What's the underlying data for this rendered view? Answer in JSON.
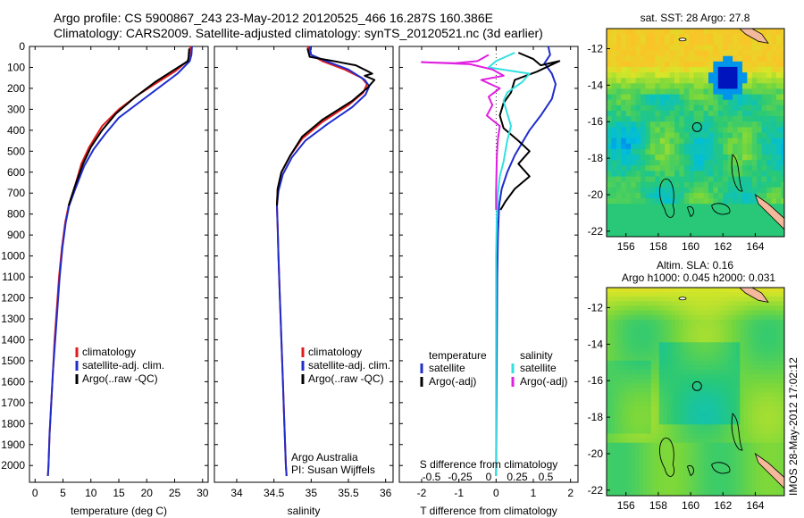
{
  "header": {
    "line1": "Argo profile: CS 5900867_243 23-May-2012 20120525_466 16.287S 160.386E",
    "line2": "Climatology: CARS2009. Satellite-adjusted climatology: synTS_20120521.nc (3d earlier)"
  },
  "footer_stamp": "IMOS 28-May-2012 17:02:12",
  "colors": {
    "climatology": "#e31a1c",
    "satellite": "#1f2dcc",
    "argo": "#000000",
    "s_satellite": "#33e0e0",
    "s_argo": "#e020e0",
    "land": "#f4b89a"
  },
  "chart_data": [
    {
      "type": "line",
      "panel": "temperature",
      "xlabel": "temperature (deg C)",
      "ylabel": "",
      "xlim": [
        -1,
        31
      ],
      "ylim": [
        2080,
        0
      ],
      "xticks": [
        0,
        5,
        10,
        15,
        20,
        25,
        30
      ],
      "yticks": [
        0,
        100,
        200,
        300,
        400,
        500,
        600,
        700,
        800,
        900,
        1000,
        1100,
        1200,
        1300,
        1400,
        1500,
        1600,
        1700,
        1800,
        1900,
        2000
      ],
      "legend": [
        "climatology",
        "satellite-adj. clim.",
        "Argo(..raw -QC)"
      ],
      "series": [
        {
          "name": "climatology",
          "color": "#e31a1c",
          "points": [
            [
              27.8,
              0
            ],
            [
              27.7,
              40
            ],
            [
              27.3,
              70
            ],
            [
              25,
              120
            ],
            [
              22,
              170
            ],
            [
              18.5,
              230
            ],
            [
              15,
              300
            ],
            [
              12,
              380
            ],
            [
              9.7,
              480
            ],
            [
              8.3,
              560
            ],
            [
              7,
              680
            ],
            [
              6,
              760
            ],
            [
              5.4,
              840
            ],
            [
              4.8,
              960
            ],
            [
              4.3,
              1100
            ],
            [
              3.9,
              1250
            ],
            [
              3.5,
              1400
            ],
            [
              3.2,
              1550
            ],
            [
              2.9,
              1700
            ],
            [
              2.6,
              1850
            ],
            [
              2.4,
              2000
            ],
            [
              2.3,
              2050
            ]
          ]
        },
        {
          "name": "satellite-adj. clim.",
          "color": "#1f2dcc",
          "points": [
            [
              28.1,
              0
            ],
            [
              28,
              40
            ],
            [
              27.7,
              70
            ],
            [
              25.5,
              130
            ],
            [
              22.5,
              190
            ],
            [
              19,
              260
            ],
            [
              15,
              340
            ],
            [
              12.5,
              420
            ],
            [
              10.5,
              490
            ],
            [
              8.8,
              570
            ],
            [
              7.2,
              680
            ],
            [
              6.1,
              760
            ],
            [
              5.5,
              840
            ],
            [
              4.9,
              960
            ],
            [
              4.4,
              1100
            ],
            [
              4,
              1250
            ],
            [
              3.6,
              1400
            ],
            [
              3.2,
              1550
            ],
            [
              2.9,
              1700
            ],
            [
              2.6,
              1850
            ],
            [
              2.4,
              2000
            ],
            [
              2.3,
              2050
            ]
          ]
        },
        {
          "name": "Argo(..raw -QC)",
          "color": "#000000",
          "points": [
            [
              27.6,
              10
            ],
            [
              27.5,
              50
            ],
            [
              27.4,
              70
            ],
            [
              25,
              110
            ],
            [
              21.5,
              170
            ],
            [
              18,
              240
            ],
            [
              14.5,
              320
            ],
            [
              12,
              400
            ],
            [
              10,
              480
            ],
            [
              8.6,
              560
            ],
            [
              7.1,
              670
            ],
            [
              6,
              760
            ]
          ]
        }
      ]
    },
    {
      "type": "line",
      "panel": "salinity",
      "xlabel": "salinity",
      "ylabel": "",
      "xlim": [
        33.7,
        36.1
      ],
      "ylim": [
        2080,
        0
      ],
      "xticks": [
        34,
        34.5,
        35,
        35.5,
        36
      ],
      "legend": [
        "climatology",
        "satellite-adj. clim.",
        "Argo(..raw -QC)"
      ],
      "annotations": [
        "Argo Australia",
        "PI: Susan Wijffels"
      ],
      "series": [
        {
          "name": "climatology",
          "color": "#e31a1c",
          "points": [
            [
              34.95,
              0
            ],
            [
              35.0,
              40
            ],
            [
              35.15,
              70
            ],
            [
              35.45,
              110
            ],
            [
              35.68,
              150
            ],
            [
              35.75,
              180
            ],
            [
              35.7,
              220
            ],
            [
              35.5,
              280
            ],
            [
              35.15,
              360
            ],
            [
              34.88,
              440
            ],
            [
              34.72,
              520
            ],
            [
              34.6,
              600
            ],
            [
              34.55,
              680
            ],
            [
              34.54,
              760
            ],
            [
              34.55,
              860
            ],
            [
              34.56,
              1000
            ],
            [
              34.58,
              1200
            ],
            [
              34.6,
              1400
            ],
            [
              34.62,
              1600
            ],
            [
              34.64,
              1800
            ],
            [
              34.66,
              2000
            ],
            [
              34.67,
              2050
            ]
          ]
        },
        {
          "name": "satellite-adj. clim.",
          "color": "#1f2dcc",
          "points": [
            [
              34.98,
              0
            ],
            [
              35.0,
              40
            ],
            [
              35.2,
              70
            ],
            [
              35.5,
              110
            ],
            [
              35.72,
              160
            ],
            [
              35.78,
              190
            ],
            [
              35.73,
              230
            ],
            [
              35.55,
              290
            ],
            [
              35.22,
              370
            ],
            [
              34.92,
              450
            ],
            [
              34.74,
              530
            ],
            [
              34.62,
              610
            ],
            [
              34.56,
              690
            ],
            [
              34.54,
              760
            ],
            [
              34.55,
              860
            ],
            [
              34.56,
              1000
            ],
            [
              34.58,
              1200
            ],
            [
              34.6,
              1400
            ],
            [
              34.62,
              1600
            ],
            [
              34.64,
              1800
            ],
            [
              34.66,
              2000
            ],
            [
              34.67,
              2050
            ]
          ]
        },
        {
          "name": "Argo(..raw -QC)",
          "color": "#000000",
          "points": [
            [
              34.95,
              10
            ],
            [
              34.98,
              50
            ],
            [
              35.3,
              70
            ],
            [
              35.6,
              90
            ],
            [
              35.77,
              120
            ],
            [
              35.82,
              130
            ],
            [
              35.72,
              140
            ],
            [
              35.85,
              160
            ],
            [
              35.75,
              200
            ],
            [
              35.55,
              260
            ],
            [
              35.15,
              350
            ],
            [
              34.88,
              430
            ],
            [
              34.72,
              520
            ],
            [
              34.6,
              600
            ],
            [
              34.55,
              680
            ],
            [
              34.54,
              760
            ]
          ]
        }
      ]
    },
    {
      "type": "line",
      "panel": "difference",
      "xlabel": "T difference from climatology",
      "top_axis_label": "S difference from climatology",
      "xlim": [
        -2.6,
        2.2
      ],
      "ylim": [
        2080,
        0
      ],
      "xticks": [
        -2,
        -1,
        0,
        1,
        2
      ],
      "s_ticks": [
        "-0.5",
        "-0.25",
        "0",
        "0.25",
        "0.5"
      ],
      "legend_headers": [
        "temperature",
        "salinity"
      ],
      "legend": [
        "satellite",
        "Argo(-adj)",
        "satellite",
        "Argo(-adj)"
      ],
      "series": [
        {
          "name": "temperature satellite",
          "color": "#1f2dcc",
          "points": [
            [
              1.4,
              0
            ],
            [
              1.45,
              40
            ],
            [
              1.3,
              80
            ],
            [
              1.5,
              130
            ],
            [
              1.6,
              180
            ],
            [
              1.5,
              250
            ],
            [
              1.2,
              330
            ],
            [
              0.9,
              400
            ],
            [
              0.7,
              460
            ],
            [
              0.5,
              520
            ],
            [
              0.3,
              600
            ],
            [
              0.15,
              680
            ],
            [
              0.08,
              760
            ],
            [
              0.05,
              900
            ],
            [
              0.03,
              1100
            ],
            [
              0.02,
              1400
            ],
            [
              0.01,
              1700
            ],
            [
              0,
              2050
            ]
          ]
        },
        {
          "name": "temperature Argo(-adj)",
          "color": "#000000",
          "points": [
            [
              0.6,
              30
            ],
            [
              1.0,
              60
            ],
            [
              1.2,
              90
            ],
            [
              1.7,
              70
            ],
            [
              1.1,
              120
            ],
            [
              0.5,
              160
            ],
            [
              0.4,
              220
            ],
            [
              0.2,
              270
            ],
            [
              0.1,
              330
            ],
            [
              0.2,
              390
            ],
            [
              0.6,
              450
            ],
            [
              0.9,
              500
            ],
            [
              0.6,
              560
            ],
            [
              0.9,
              620
            ],
            [
              0.5,
              680
            ],
            [
              0.25,
              740
            ],
            [
              0.12,
              780
            ]
          ]
        },
        {
          "name": "salinity satellite",
          "color": "#33e0e0",
          "points": [
            [
              0.5,
              30
            ],
            [
              0.0,
              70
            ],
            [
              -0.2,
              100
            ],
            [
              0.9,
              130
            ],
            [
              0.7,
              170
            ],
            [
              0.3,
              220
            ],
            [
              0.2,
              260
            ],
            [
              0.3,
              320
            ],
            [
              0.4,
              380
            ],
            [
              0.3,
              450
            ],
            [
              0.2,
              550
            ],
            [
              0.1,
              620
            ],
            [
              0.05,
              700
            ],
            [
              0.02,
              800
            ],
            [
              0,
              1000
            ],
            [
              0,
              2050
            ]
          ]
        },
        {
          "name": "salinity Argo(-adj)",
          "color": "#e020e0",
          "points": [
            [
              -0.2,
              40
            ],
            [
              -0.5,
              70
            ],
            [
              -1.1,
              80
            ],
            [
              -2.0,
              75
            ],
            [
              -0.7,
              85
            ],
            [
              -0.1,
              110
            ],
            [
              0.2,
              140
            ],
            [
              -0.4,
              160
            ],
            [
              0.1,
              200
            ],
            [
              -0.2,
              240
            ],
            [
              -0.1,
              280
            ],
            [
              -0.25,
              330
            ],
            [
              0.1,
              380
            ],
            [
              0.05,
              440
            ],
            [
              0.02,
              520
            ],
            [
              0.01,
              600
            ],
            [
              0,
              700
            ],
            [
              0,
              780
            ]
          ]
        }
      ]
    },
    {
      "type": "heatmap",
      "panel": "sst_map",
      "title": "sat. SST: 28 Argo: 27.8",
      "xticks": [
        156,
        158,
        160,
        162,
        164
      ],
      "yticks": [
        -12,
        -14,
        -16,
        -18,
        -20,
        -22
      ],
      "xlim": [
        154.8,
        165.8
      ],
      "ylim": [
        -22.3,
        -10.9
      ],
      "marker": [
        160.4,
        -16.3
      ]
    },
    {
      "type": "heatmap",
      "panel": "sla_map",
      "title_lines": [
        "Altim. SLA: 0.16",
        "Argo h1000: 0.045 h2000: 0.031"
      ],
      "xticks": [
        156,
        158,
        160,
        162,
        164
      ],
      "yticks": [
        -12,
        -14,
        -16,
        -18,
        -20,
        -22
      ],
      "xlim": [
        154.8,
        165.8
      ],
      "ylim": [
        -22.3,
        -10.9
      ],
      "marker": [
        160.4,
        -16.3
      ]
    }
  ]
}
